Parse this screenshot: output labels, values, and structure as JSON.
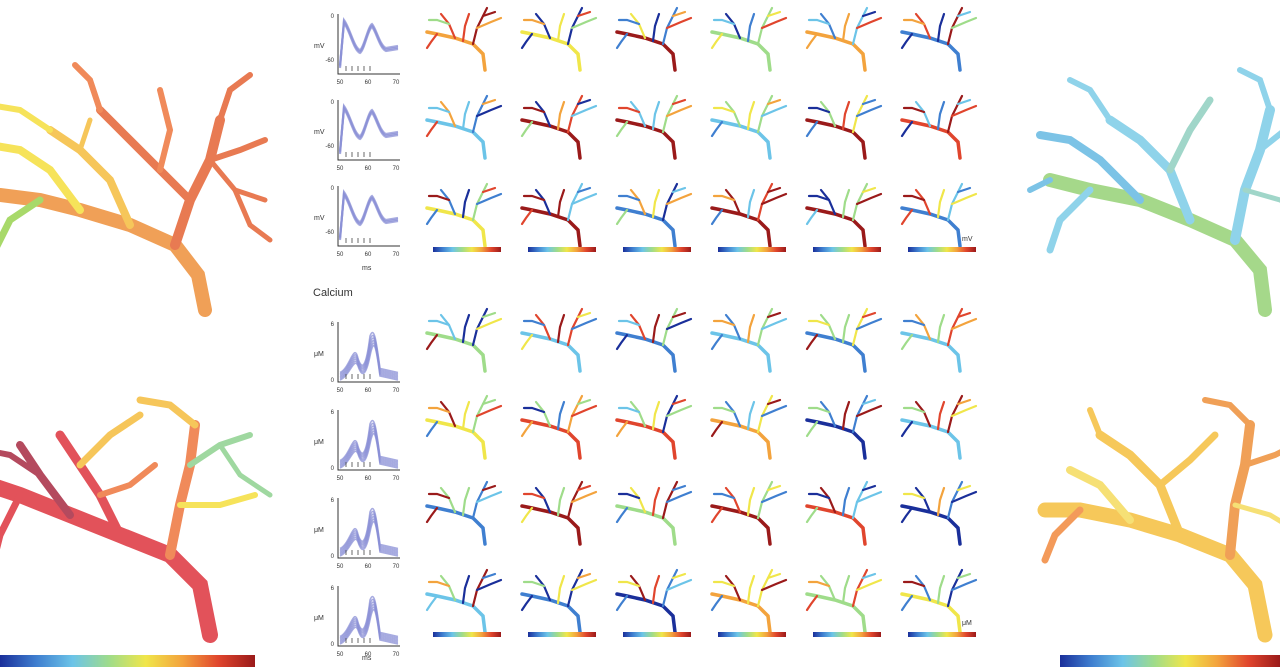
{
  "section_label": "Calcium",
  "units": {
    "voltage_panel_end": "mV",
    "calcium_panel_end": "μM",
    "time": "ms"
  },
  "voltage_traces": [
    {
      "ylabel": "mV",
      "y_top": "0",
      "y_bottom": "-60",
      "x_ticks": [
        "50",
        "60",
        "70"
      ]
    },
    {
      "ylabel": "mV",
      "y_top": "0",
      "y_bottom": "-60",
      "x_ticks": [
        "50",
        "60",
        "70"
      ]
    },
    {
      "ylabel": "mV",
      "y_top": "0",
      "y_bottom": "-60",
      "x_ticks": [
        "50",
        "60",
        "70"
      ]
    }
  ],
  "calcium_traces": [
    {
      "ylabel": "μM",
      "y_top": "6",
      "y_bottom": "0",
      "x_ticks": [
        "50",
        "60",
        "70"
      ]
    },
    {
      "ylabel": "μM",
      "y_top": "6",
      "y_bottom": "0",
      "x_ticks": [
        "50",
        "60",
        "70"
      ]
    },
    {
      "ylabel": "μM",
      "y_top": "6",
      "y_bottom": "0",
      "x_ticks": [
        "50",
        "60",
        "70"
      ]
    },
    {
      "ylabel": "μM",
      "y_top": "6",
      "y_bottom": "0",
      "x_ticks": [
        "50",
        "60",
        "70"
      ]
    }
  ],
  "colors": {
    "trace": "#8a8fd6",
    "colormap": [
      "#1a2f9a",
      "#3f7fd0",
      "#6cc4e8",
      "#9fdc8a",
      "#f0e64a",
      "#f3a33d",
      "#e0452d",
      "#9a1a1a"
    ]
  },
  "big_trees": [
    {
      "palette": [
        "#f6e35a",
        "#f0a057",
        "#e87a52",
        "#a8d96a"
      ]
    },
    {
      "palette": [
        "#e2525a",
        "#f08a5a",
        "#f6c65a",
        "#9fd8a0",
        "#b44a5e"
      ]
    },
    {
      "palette": [
        "#8fd3ea",
        "#a0d6c9",
        "#a5d88a",
        "#7cc3e6"
      ]
    },
    {
      "palette": [
        "#f6c85a",
        "#f0a057",
        "#f6e075",
        "#f39a5a"
      ]
    }
  ]
}
